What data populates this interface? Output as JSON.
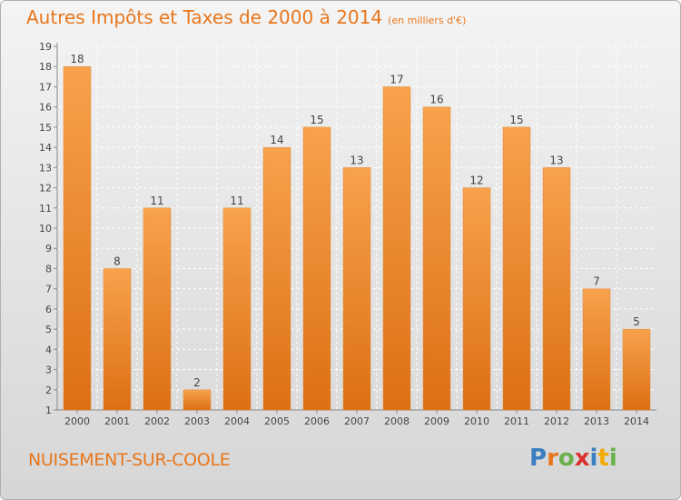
{
  "chart_data": {
    "type": "bar",
    "title": "Autres Impôts et Taxes de 2000 à 2014",
    "unit": "(en milliers d'€)",
    "categories": [
      "2000",
      "2001",
      "2002",
      "2003",
      "2004",
      "2005",
      "2006",
      "2007",
      "2008",
      "2009",
      "2010",
      "2011",
      "2012",
      "2013",
      "2014"
    ],
    "values": [
      18,
      8,
      11,
      2,
      11,
      14,
      15,
      13,
      17,
      16,
      12,
      15,
      13,
      7,
      5
    ],
    "xlabel": "",
    "ylabel": "",
    "ylim": [
      1,
      19
    ],
    "yticks": [
      1,
      2,
      3,
      4,
      5,
      6,
      7,
      8,
      9,
      10,
      11,
      12,
      13,
      14,
      15,
      16,
      17,
      18,
      19
    ],
    "grid": true,
    "bar_color": "#f0922e"
  },
  "footer": {
    "commune": "NUISEMENT-SUR-COOLE",
    "logo_letters": [
      "P",
      "r",
      "o",
      "x",
      "i",
      "t",
      "i"
    ],
    "logo_colors": [
      "#3a7fc1",
      "#e8761c",
      "#6ab04c",
      "#d9312b",
      "#3a7fc1",
      "#f2a900",
      "#6ab04c"
    ]
  }
}
